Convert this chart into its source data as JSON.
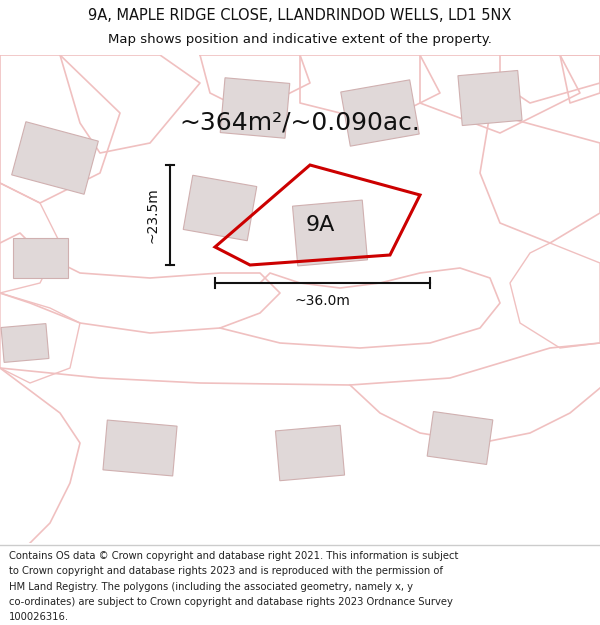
{
  "title_line1": "9A, MAPLE RIDGE CLOSE, LLANDRINDOD WELLS, LD1 5NX",
  "title_line2": "Map shows position and indicative extent of the property.",
  "area_text": "~364m²/~0.090ac.",
  "label_9A": "9A",
  "dim_height": "~23.5m",
  "dim_width": "~36.0m",
  "footer_lines": [
    "Contains OS data © Crown copyright and database right 2021. This information is subject",
    "to Crown copyright and database rights 2023 and is reproduced with the permission of",
    "HM Land Registry. The polygons (including the associated geometry, namely x, y",
    "co-ordinates) are subject to Crown copyright and database rights 2023 Ordnance Survey",
    "100026316."
  ],
  "bg_color": "#ffffff",
  "map_bg": "#f5f0f0",
  "plot_outline_color": "#cc0000",
  "road_color": "#f0c0c0",
  "building_color": "#e0d8d8",
  "building_edge": "#d0b0b0",
  "dim_color": "#111111",
  "title_color": "#111111",
  "separator_color": "#cccccc"
}
